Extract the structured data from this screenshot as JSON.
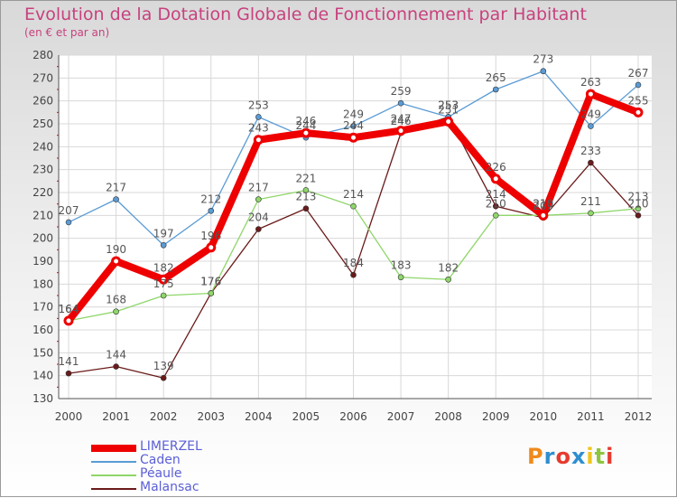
{
  "header": {
    "title": "Evolution de la Dotation Globale de Fonctionnement par Habitant",
    "subtitle": "(en € et par an)"
  },
  "logo": {
    "text": "Proxiti",
    "colors": [
      "#f08a1c",
      "#2e8fd0",
      "#e63b2e",
      "#2e8fd0",
      "#f0c419",
      "#8cc63f",
      "#e63b2e"
    ]
  },
  "chart_data": {
    "type": "line",
    "title": "Evolution de la Dotation Globale de Fonctionnement par Habitant",
    "subtitle": "(en € et par an)",
    "xlabel": "",
    "ylabel": "",
    "ylim": [
      130,
      280
    ],
    "yticks": [
      130,
      140,
      150,
      160,
      170,
      180,
      190,
      200,
      210,
      220,
      230,
      240,
      250,
      260,
      270,
      280
    ],
    "categories": [
      "2000",
      "2001",
      "2002",
      "2003",
      "2004",
      "2005",
      "2006",
      "2007",
      "2008",
      "2009",
      "2010",
      "2011",
      "2012"
    ],
    "grid": true,
    "legend_position": "bottom-left",
    "series": [
      {
        "name": "LIMERZEL",
        "color": "#ee0000",
        "values": [
          164,
          190,
          182,
          196,
          243,
          246,
          244,
          247,
          251,
          226,
          210,
          263,
          255
        ],
        "labels": [
          "164",
          "190",
          "182",
          "196",
          "243",
          "246",
          "244",
          "247",
          "251",
          "226",
          "210",
          "263",
          "255"
        ]
      },
      {
        "name": "Caden",
        "color": "#5a9bd5",
        "values": [
          207,
          217,
          197,
          212,
          253,
          244,
          249,
          259,
          253,
          265,
          273,
          249,
          267
        ],
        "labels": [
          "207",
          "217",
          "197",
          "212",
          "253",
          "244",
          "249",
          "259",
          "253",
          "265",
          "273",
          "249",
          "267"
        ]
      },
      {
        "name": "Péaule",
        "color": "#8fd66a",
        "values": [
          164,
          168,
          175,
          176,
          217,
          221,
          214,
          183,
          182,
          210,
          210,
          211,
          213
        ],
        "labels": [
          "164",
          "168",
          "175",
          "176",
          "217",
          "221",
          "214",
          "183",
          "182",
          "210",
          "210",
          "211",
          "213"
        ]
      },
      {
        "name": "Malansac",
        "color": "#6b1a1a",
        "values": [
          141,
          144,
          139,
          176,
          204,
          213,
          184,
          246,
          253,
          214,
          209,
          233,
          210
        ],
        "labels": [
          "141",
          "144",
          "139",
          "176",
          "204",
          "213",
          "184",
          "246",
          "253",
          "214",
          "209",
          "233",
          "210"
        ]
      }
    ]
  }
}
